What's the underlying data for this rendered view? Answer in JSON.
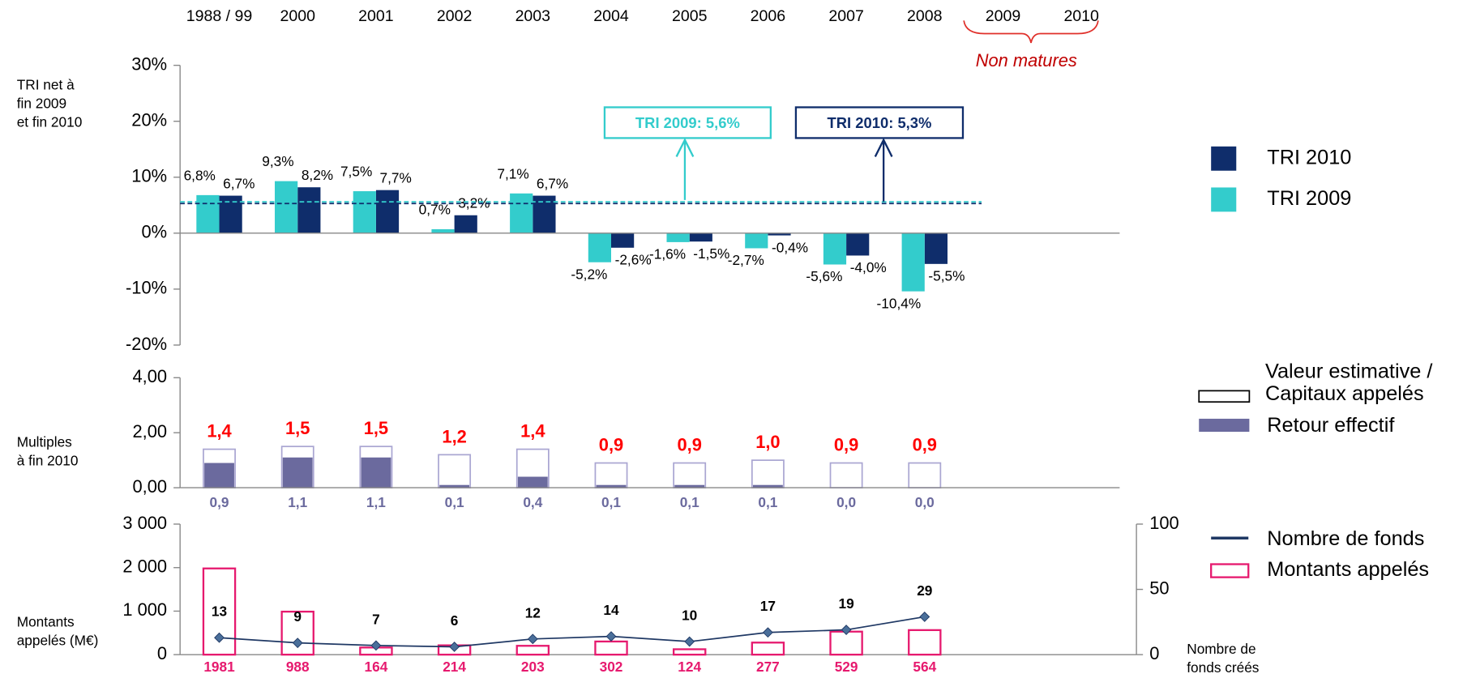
{
  "chart_data": [
    {
      "type": "grouped_bar",
      "categories": [
        "1988 / 99",
        "2000",
        "2001",
        "2002",
        "2003",
        "2004",
        "2005",
        "2006",
        "2007",
        "2008",
        "2009",
        "2010"
      ],
      "y_label": [
        "TRI net à",
        "fin 2009",
        "et fin 2010"
      ],
      "ylim": [
        -20,
        30
      ],
      "yticks": [
        {
          "value": 30,
          "label": "30%"
        },
        {
          "value": 20,
          "label": "20%"
        },
        {
          "value": 10,
          "label": "10%"
        },
        {
          "value": 0,
          "label": "0%"
        },
        {
          "value": -10,
          "label": "-10%"
        },
        {
          "value": -20,
          "label": "-20%"
        }
      ],
      "series": [
        {
          "name": "TRI 2010",
          "color": "#0f2d6b",
          "values": [
            6.7,
            8.2,
            7.7,
            3.2,
            6.7,
            -2.6,
            -1.5,
            -0.4,
            -4.0,
            -5.5,
            null,
            null
          ],
          "value_labels": [
            "6,7%",
            "8,2%",
            "7,7%",
            "3,2%",
            "6,7%",
            "-2,6%",
            "-1,5%",
            "-0,4%",
            "-4,0%",
            "-5,5%",
            null,
            null
          ]
        },
        {
          "name": "TRI 2009",
          "color": "#33cccc",
          "values": [
            6.8,
            9.3,
            7.5,
            0.7,
            7.1,
            -5.2,
            -1.6,
            -2.7,
            -5.6,
            -10.4,
            null,
            null
          ],
          "value_labels": [
            "6,8%",
            "9,3%",
            "7,5%",
            "0,7%",
            "7,1%",
            "-5,2%",
            "-1,6%",
            "-2,7%",
            "-5,6%",
            "-10,4%",
            null,
            null
          ]
        }
      ],
      "reference_lines": [
        {
          "label": "TRI 2009: 5,6%",
          "value": 5.6,
          "color": "#33cccc"
        },
        {
          "label": "TRI 2010: 5,3%",
          "value": 5.3,
          "color": "#0f2d6b"
        }
      ],
      "annotation": "Non matures",
      "legend": "right"
    },
    {
      "type": "overlap_bar",
      "y_label": [
        "Multiples",
        "à fin 2010"
      ],
      "ylim": [
        0,
        4
      ],
      "yticks": [
        {
          "value": 0,
          "label": "0,00"
        },
        {
          "value": 2,
          "label": "2,00"
        },
        {
          "value": 4,
          "label": "4,00"
        }
      ],
      "series": [
        {
          "name": "Valeur estimative / Capitaux appelés",
          "color": "#aaa6d2",
          "label_color": "#ff0000",
          "values": [
            1.4,
            1.5,
            1.5,
            1.2,
            1.4,
            0.9,
            0.9,
            1.0,
            0.9,
            0.9
          ],
          "value_labels": [
            "1,4",
            "1,5",
            "1,5",
            "1,2",
            "1,4",
            "0,9",
            "0,9",
            "1,0",
            "0,9",
            "0,9"
          ]
        },
        {
          "name": "Retour effectif",
          "color": "#6b6a9e",
          "label_color": "#6b6a9e",
          "values": [
            0.9,
            1.1,
            1.1,
            0.1,
            0.4,
            0.1,
            0.1,
            0.1,
            0.0,
            0.0
          ],
          "value_labels": [
            "0,9",
            "1,1",
            "1,1",
            "0,1",
            "0,4",
            "0,1",
            "0,1",
            "0,1",
            "0,0",
            "0,0"
          ]
        }
      ],
      "legend": "right"
    },
    {
      "type": "bar_line",
      "y_label": [
        "Montants",
        "appelés (M€)"
      ],
      "y2_label": [
        "Nombre de",
        "fonds créés"
      ],
      "ylim": [
        0,
        3000
      ],
      "yticks": [
        0,
        {
          "value": 1000,
          "label": "1 000"
        },
        {
          "value": 2000,
          "label": "2 000"
        },
        {
          "value": 3000,
          "label": "3 000"
        }
      ],
      "y2lim": [
        0,
        100
      ],
      "y2ticks": [
        0,
        50,
        100
      ],
      "series": [
        {
          "name": "Nombre de fonds",
          "color": "#1f3864",
          "axis": "y2",
          "values": [
            13,
            9,
            7,
            6,
            12,
            14,
            10,
            17,
            19,
            29
          ]
        },
        {
          "name": "Montants appelés",
          "color": "#e6196e",
          "values": [
            1981,
            988,
            164,
            214,
            203,
            302,
            124,
            277,
            529,
            564
          ]
        }
      ],
      "legend": "right"
    }
  ]
}
